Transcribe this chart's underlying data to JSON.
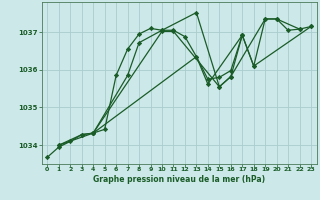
{
  "title": "Graphe pression niveau de la mer (hPa)",
  "bg_color": "#cce8e8",
  "grid_color": "#aacccc",
  "line_color": "#1a5c28",
  "xlim": [
    -0.5,
    23.5
  ],
  "ylim": [
    1033.5,
    1037.8
  ],
  "yticks": [
    1034,
    1035,
    1036,
    1037
  ],
  "xticks": [
    0,
    1,
    2,
    3,
    4,
    5,
    6,
    7,
    8,
    9,
    10,
    11,
    12,
    13,
    14,
    15,
    16,
    17,
    18,
    19,
    20,
    21,
    22,
    23
  ],
  "series": [
    [
      1033.68,
      1033.95,
      1034.1,
      1034.28,
      1034.32,
      1034.42,
      1035.85,
      1036.55,
      1036.95,
      1037.1,
      1037.05,
      1037.05,
      1036.88,
      1036.35,
      1035.75,
      1035.8,
      1035.98,
      1036.92,
      1036.1,
      1037.35,
      1037.35,
      1037.05,
      1037.08,
      1037.15
    ],
    [
      null,
      1034.0,
      null,
      null,
      1034.32,
      null,
      null,
      1035.85,
      1036.72,
      null,
      1037.05,
      null,
      null,
      1037.52,
      null,
      1035.55,
      1035.82,
      1036.92,
      null,
      null,
      null,
      null,
      null,
      null
    ],
    [
      null,
      null,
      null,
      null,
      1034.32,
      null,
      null,
      null,
      null,
      null,
      1037.02,
      1037.02,
      null,
      null,
      null,
      1035.55,
      1035.82,
      null,
      null,
      1037.35,
      1037.35,
      null,
      1037.08,
      null
    ],
    [
      null,
      1034.0,
      null,
      1034.28,
      1034.32,
      null,
      null,
      null,
      null,
      null,
      null,
      null,
      null,
      1036.35,
      1035.62,
      null,
      null,
      1036.92,
      1036.1,
      null,
      null,
      null,
      null,
      1037.15
    ]
  ]
}
